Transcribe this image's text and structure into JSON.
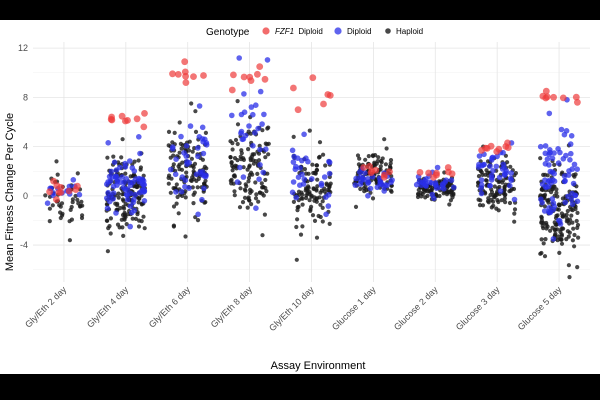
{
  "chart_data": {
    "type": "scatter",
    "title": "",
    "xlabel": "Assay Environment",
    "ylabel": "Mean Fitness Change Per Cycle",
    "ylim": [
      -7,
      12.5
    ],
    "yticks": [
      -4,
      0,
      4,
      8,
      12
    ],
    "yticks_minor": [
      -6,
      -2,
      2,
      6,
      10
    ],
    "grid": true,
    "categories": [
      "Gly/Eth 2 day",
      "Gly/Eth 4 day",
      "Gly/Eth 6 day",
      "Gly/Eth 8 day",
      "Gly/Eth 10 day",
      "Glucose 1 day",
      "Glucose 2 day",
      "Glucose 3 day",
      "Glucose 5 day"
    ],
    "legend": {
      "title": "Genotype",
      "position": "top",
      "entries": [
        {
          "name": "FZF1",
          "suffix": "Diploid",
          "color": "#ee3b3b"
        },
        {
          "name": "Diploid",
          "suffix": "",
          "color": "#2a2fe8"
        },
        {
          "name": "Haploid",
          "suffix": "",
          "color": "#1a1a1a"
        }
      ]
    },
    "series": [
      {
        "name": "FZF1 Diploid",
        "color": "#ee3b3b",
        "summary": [
          {
            "category": "Gly/Eth 2 day",
            "min": -0.3,
            "max": 1.2,
            "n": 10
          },
          {
            "category": "Gly/Eth 4 day",
            "min": 5.6,
            "max": 6.7,
            "n": 9
          },
          {
            "category": "Gly/Eth 6 day",
            "min": 9.2,
            "max": 10.9,
            "n": 8
          },
          {
            "category": "Gly/Eth 8 day",
            "min": 8.6,
            "max": 10.5,
            "n": 8
          },
          {
            "category": "Gly/Eth 10 day",
            "min": 7.0,
            "max": 9.6,
            "n": 6
          },
          {
            "category": "Glucose 1 day",
            "min": 1.5,
            "max": 2.4,
            "n": 8
          },
          {
            "category": "Glucose 2 day",
            "min": 1.5,
            "max": 2.3,
            "n": 8
          },
          {
            "category": "Glucose 3 day",
            "min": 3.6,
            "max": 4.3,
            "n": 9
          },
          {
            "category": "Glucose 5 day",
            "min": 7.6,
            "max": 8.5,
            "n": 8
          }
        ]
      },
      {
        "name": "Diploid",
        "color": "#2a2fe8",
        "summary": [
          {
            "category": "Gly/Eth 2 day",
            "min": -0.6,
            "max": 1.3,
            "n": 14
          },
          {
            "category": "Gly/Eth 4 day",
            "min": -2.5,
            "max": 4.8,
            "n": 70
          },
          {
            "category": "Gly/Eth 6 day",
            "min": -1.5,
            "max": 7.3,
            "n": 40
          },
          {
            "category": "Gly/Eth 8 day",
            "min": -1.0,
            "max": 11.2,
            "n": 30
          },
          {
            "category": "Gly/Eth 10 day",
            "min": -1.5,
            "max": 5.0,
            "n": 30
          },
          {
            "category": "Glucose 1 day",
            "min": 0.0,
            "max": 2.2,
            "n": 30
          },
          {
            "category": "Glucose 2 day",
            "min": -0.2,
            "max": 2.3,
            "n": 30
          },
          {
            "category": "Glucose 3 day",
            "min": -0.3,
            "max": 4.3,
            "n": 40
          },
          {
            "category": "Glucose 5 day",
            "min": -3.5,
            "max": 7.8,
            "n": 70
          }
        ]
      },
      {
        "name": "Haploid",
        "color": "#1a1a1a",
        "summary": [
          {
            "category": "Gly/Eth 2 day",
            "min": -3.6,
            "max": 2.8,
            "n": 45
          },
          {
            "category": "Gly/Eth 4 day",
            "min": -4.5,
            "max": 4.6,
            "n": 160
          },
          {
            "category": "Gly/Eth 6 day",
            "min": -3.3,
            "max": 7.5,
            "n": 130
          },
          {
            "category": "Gly/Eth 8 day",
            "min": -3.2,
            "max": 7.7,
            "n": 120
          },
          {
            "category": "Gly/Eth 10 day",
            "min": -5.2,
            "max": 5.3,
            "n": 110
          },
          {
            "category": "Glucose 1 day",
            "min": -0.9,
            "max": 4.6,
            "n": 110
          },
          {
            "category": "Glucose 2 day",
            "min": -0.7,
            "max": 1.9,
            "n": 100
          },
          {
            "category": "Glucose 3 day",
            "min": -2.1,
            "max": 4.0,
            "n": 110
          },
          {
            "category": "Glucose 5 day",
            "min": -6.6,
            "max": 4.1,
            "n": 170
          }
        ]
      }
    ]
  }
}
